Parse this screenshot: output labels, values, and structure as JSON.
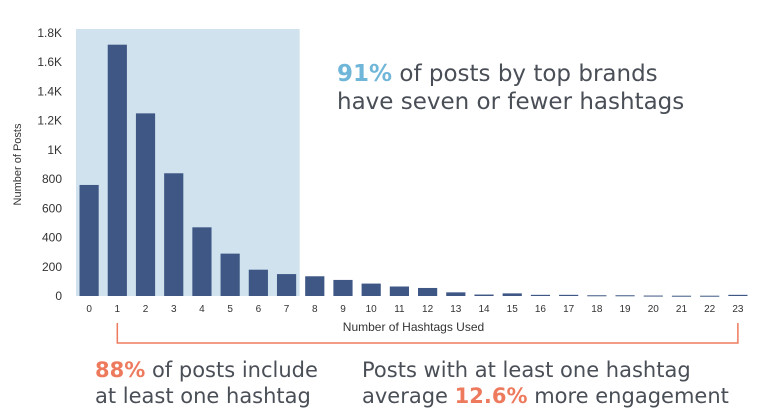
{
  "chart_data": {
    "type": "bar",
    "categories": [
      "0",
      "1",
      "2",
      "3",
      "4",
      "5",
      "6",
      "7",
      "8",
      "9",
      "10",
      "11",
      "12",
      "13",
      "14",
      "15",
      "16",
      "17",
      "18",
      "19",
      "20",
      "21",
      "22",
      "23"
    ],
    "values": [
      760,
      1720,
      1250,
      840,
      470,
      290,
      180,
      150,
      135,
      110,
      85,
      65,
      55,
      25,
      10,
      18,
      8,
      8,
      5,
      5,
      3,
      2,
      2,
      8
    ],
    "xlabel": "Number of Hashtags Used",
    "ylabel": "Number of Posts",
    "ylim": [
      0,
      1800
    ],
    "y_ticks": [
      {
        "value": 0,
        "label": "0"
      },
      {
        "value": 200,
        "label": "200"
      },
      {
        "value": 400,
        "label": "400"
      },
      {
        "value": 600,
        "label": "600"
      },
      {
        "value": 800,
        "label": "800"
      },
      {
        "value": 1000,
        "label": "1K"
      },
      {
        "value": 1200,
        "label": "1.2K"
      },
      {
        "value": 1400,
        "label": "1.4K"
      },
      {
        "value": 1600,
        "label": "1.6K"
      },
      {
        "value": 1800,
        "label": "1.8K"
      }
    ],
    "highlight_range": [
      0,
      7
    ],
    "bracket_range": [
      1,
      23
    ],
    "grid": false,
    "colors": {
      "bar": "#3e5785",
      "highlight": "#cfe2ee",
      "bracket": "#ee7a5e",
      "axis_text": "#333333"
    }
  },
  "callouts": {
    "top": {
      "highlight": "91%",
      "line1_rest": " of posts by top brands",
      "line2": "have seven or fewer hashtags"
    },
    "left": {
      "highlight": "88%",
      "line1_rest": " of posts include",
      "line2": "at least one hashtag"
    },
    "right": {
      "line1": "Posts with at least one hashtag",
      "line2_prefix": "average ",
      "highlight": "12.6%",
      "line2_suffix": " more engagement"
    }
  }
}
